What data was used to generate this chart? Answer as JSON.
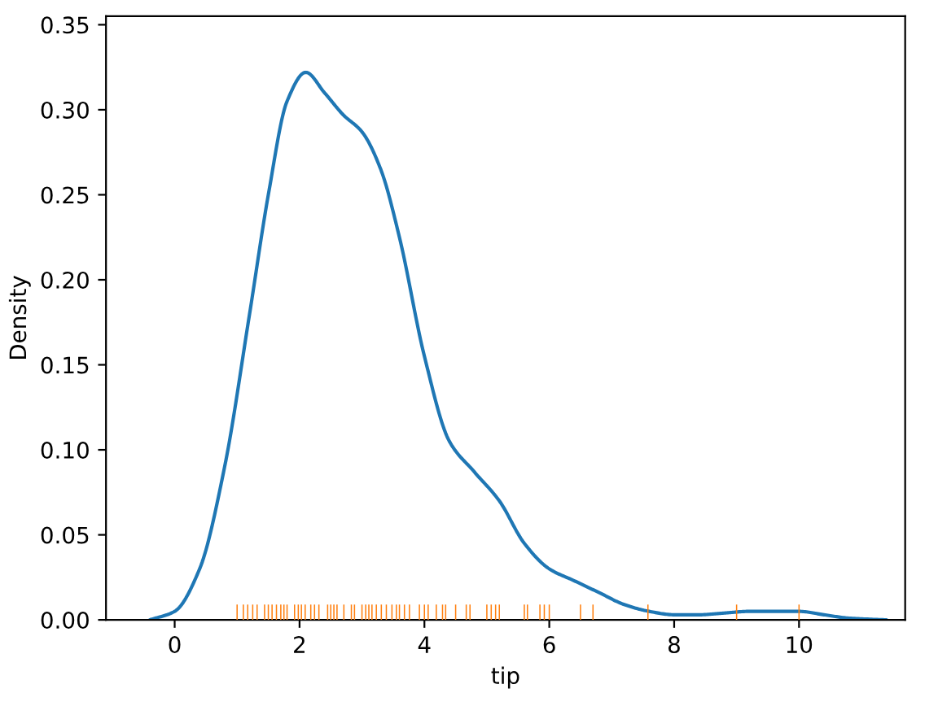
{
  "chart_data": {
    "type": "line",
    "xlabel": "tip",
    "ylabel": "Density",
    "xlim": [
      -1.1,
      11.7
    ],
    "ylim": [
      0,
      0.355
    ],
    "xticks": [
      0,
      2,
      4,
      6,
      8,
      10
    ],
    "yticks": [
      {
        "value": 0,
        "label": "0.00"
      },
      {
        "value": 0.05,
        "label": "0.05"
      },
      {
        "value": 0.1,
        "label": "0.10"
      },
      {
        "value": 0.15,
        "label": "0.15"
      },
      {
        "value": 0.2,
        "label": "0.20"
      },
      {
        "value": 0.25,
        "label": "0.25"
      },
      {
        "value": 0.3,
        "label": "0.30"
      },
      {
        "value": 0.35,
        "label": "0.35"
      }
    ],
    "grid": false,
    "series": [
      {
        "color": "#1f77b4",
        "x": [
          -0.4,
          0,
          0.4,
          0.8,
          1.2,
          1.5,
          1.8,
          2.1,
          2.4,
          2.7,
          3.0,
          3.3,
          3.6,
          4.0,
          4.4,
          4.8,
          5.2,
          5.6,
          6.0,
          6.4,
          6.8,
          7.2,
          7.6,
          8.0,
          8.4,
          8.8,
          9.2,
          9.6,
          10.0,
          10.4,
          10.8,
          11.4
        ],
        "values": [
          0.0,
          0.005,
          0.03,
          0.09,
          0.18,
          0.25,
          0.305,
          0.322,
          0.31,
          0.297,
          0.287,
          0.265,
          0.225,
          0.155,
          0.105,
          0.087,
          0.07,
          0.045,
          0.03,
          0.023,
          0.016,
          0.009,
          0.005,
          0.003,
          0.003,
          0.004,
          0.005,
          0.005,
          0.005,
          0.003,
          0.001,
          0.0
        ]
      },
      {
        "type": "bar",
        "color": "#ff7f0e",
        "x": [
          1.0,
          1.1,
          1.17,
          1.25,
          1.32,
          1.44,
          1.5,
          1.56,
          1.63,
          1.7,
          1.75,
          1.8,
          1.92,
          1.98,
          2.03,
          2.09,
          2.18,
          2.24,
          2.31,
          2.45,
          2.5,
          2.55,
          2.6,
          2.71,
          2.83,
          2.88,
          3.0,
          3.06,
          3.11,
          3.16,
          3.23,
          3.31,
          3.39,
          3.48,
          3.55,
          3.6,
          3.68,
          3.76,
          3.92,
          4.0,
          4.06,
          4.19,
          4.29,
          4.34,
          4.5,
          4.67,
          4.73,
          5.0,
          5.07,
          5.14,
          5.2,
          5.6,
          5.65,
          5.85,
          5.92,
          6.0,
          6.5,
          6.7,
          7.58,
          9.0,
          10.0
        ],
        "values": [
          0.009,
          0.009,
          0.009,
          0.009,
          0.009,
          0.009,
          0.009,
          0.009,
          0.009,
          0.009,
          0.009,
          0.009,
          0.009,
          0.009,
          0.009,
          0.009,
          0.009,
          0.009,
          0.009,
          0.009,
          0.009,
          0.009,
          0.009,
          0.009,
          0.009,
          0.009,
          0.009,
          0.009,
          0.009,
          0.009,
          0.009,
          0.009,
          0.009,
          0.009,
          0.009,
          0.009,
          0.009,
          0.009,
          0.009,
          0.009,
          0.009,
          0.009,
          0.009,
          0.009,
          0.009,
          0.009,
          0.009,
          0.009,
          0.009,
          0.009,
          0.009,
          0.009,
          0.009,
          0.009,
          0.009,
          0.009,
          0.009,
          0.009,
          0.009,
          0.009,
          0.009
        ]
      }
    ]
  }
}
